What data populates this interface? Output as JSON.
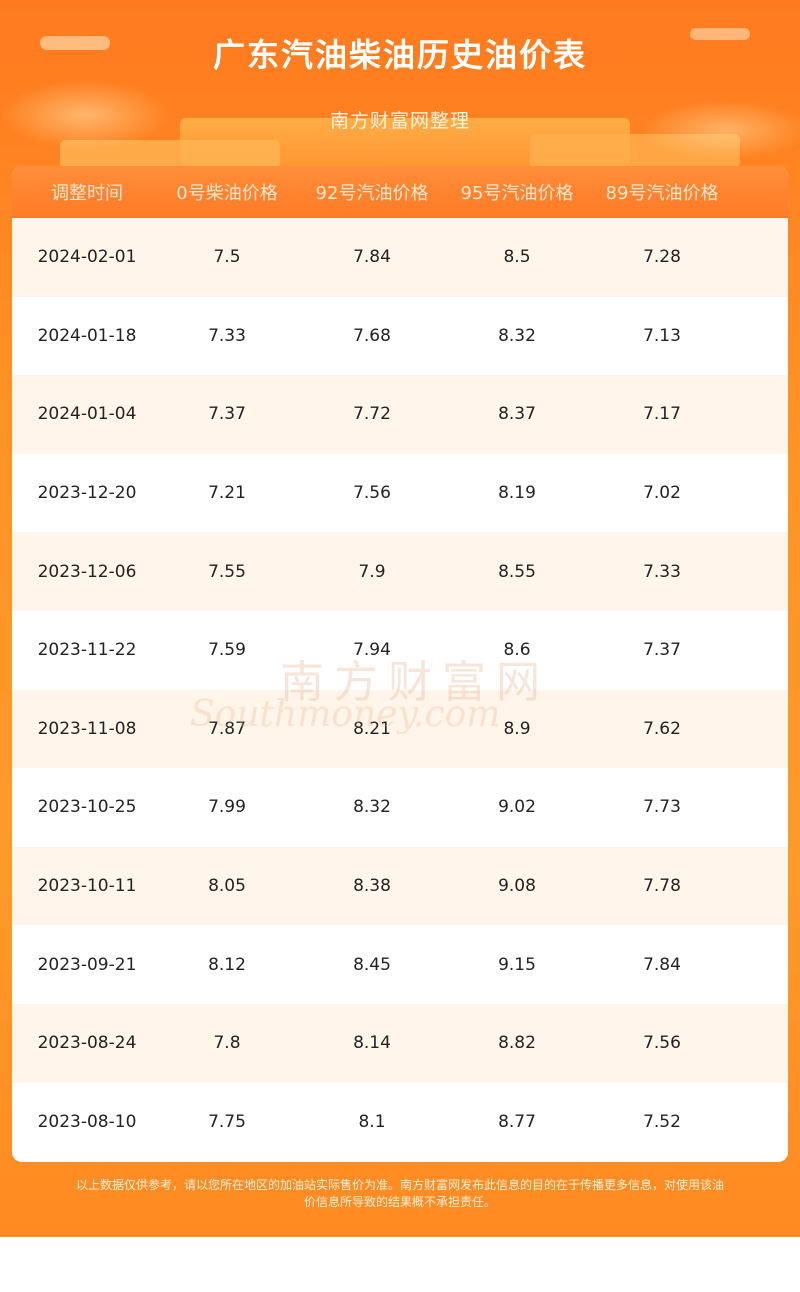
{
  "header": {
    "title": "广东汽油柴油历史油价表",
    "subtitle": "南方财富网整理"
  },
  "table": {
    "columns": [
      "调整时间",
      "0号柴油价格",
      "92号汽油价格",
      "95号汽油价格",
      "89号汽油价格"
    ],
    "rows": [
      [
        "2024-02-01",
        "7.5",
        "7.84",
        "8.5",
        "7.28"
      ],
      [
        "2024-01-18",
        "7.33",
        "7.68",
        "8.32",
        "7.13"
      ],
      [
        "2024-01-04",
        "7.37",
        "7.72",
        "8.37",
        "7.17"
      ],
      [
        "2023-12-20",
        "7.21",
        "7.56",
        "8.19",
        "7.02"
      ],
      [
        "2023-12-06",
        "7.55",
        "7.9",
        "8.55",
        "7.33"
      ],
      [
        "2023-11-22",
        "7.59",
        "7.94",
        "8.6",
        "7.37"
      ],
      [
        "2023-11-08",
        "7.87",
        "8.21",
        "8.9",
        "7.62"
      ],
      [
        "2023-10-25",
        "7.99",
        "8.32",
        "9.02",
        "7.73"
      ],
      [
        "2023-10-11",
        "8.05",
        "8.38",
        "9.08",
        "7.78"
      ],
      [
        "2023-09-21",
        "8.12",
        "8.45",
        "9.15",
        "7.84"
      ],
      [
        "2023-08-24",
        "7.8",
        "8.14",
        "8.82",
        "7.56"
      ],
      [
        "2023-08-10",
        "7.75",
        "8.1",
        "8.77",
        "7.52"
      ]
    ]
  },
  "watermark": {
    "cn": "南方财富网",
    "en": "Southmoney.com"
  },
  "footer": {
    "line1": "以上数据仅供参考，请以您所在地区的加油站实际售价为准。南方财富网发布此信息的目的在于传播更多信息，对使用该油",
    "line2": "价信息所导致的结果概不承担责任。"
  },
  "colors": {
    "background": "#ff9326",
    "header_row": "#ff7a26",
    "row_alt": "#fff5ea"
  }
}
